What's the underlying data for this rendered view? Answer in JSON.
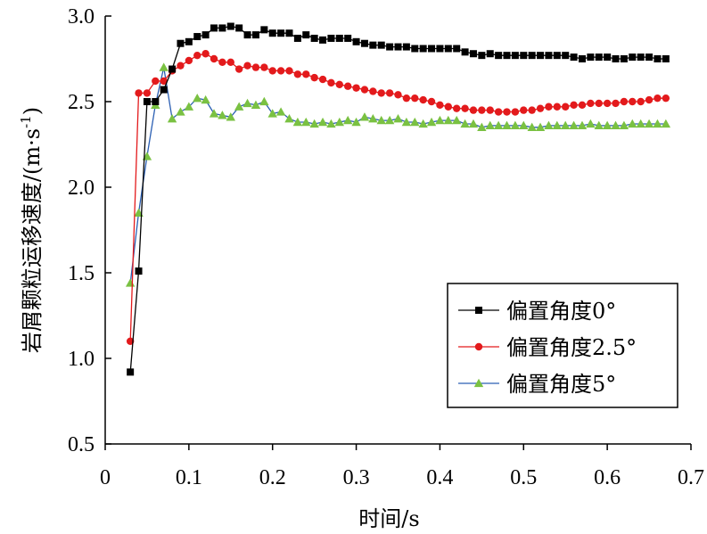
{
  "chart_data": {
    "type": "line",
    "xlabel": "时间/s",
    "ylabel": "岩屑颗粒运移速度/(m·s",
    "ylabel_sup": "-1",
    "ylabel_close": ")",
    "xlim": [
      0,
      0.7
    ],
    "ylim": [
      0.5,
      3.0
    ],
    "xticks": [
      0,
      0.1,
      0.2,
      0.3,
      0.4,
      0.5,
      0.6,
      0.7
    ],
    "xtick_labels": [
      "0",
      "0.1",
      "0.2",
      "0.3",
      "0.4",
      "0.5",
      "0.6",
      "0.7"
    ],
    "yticks": [
      0.5,
      1.0,
      1.5,
      2.0,
      2.5,
      3.0
    ],
    "ytick_labels": [
      "0.5",
      "1.0",
      "1.5",
      "2.0",
      "2.5",
      "3.0"
    ],
    "grid": false,
    "legend_position": "bottom-right",
    "series": [
      {
        "name": "偏置角度0°",
        "color": "#000000",
        "line_color": "#000000",
        "marker": "square",
        "x": [
          0.03,
          0.04,
          0.05,
          0.06,
          0.07,
          0.08,
          0.09,
          0.1,
          0.11,
          0.12,
          0.13,
          0.14,
          0.15,
          0.16,
          0.17,
          0.18,
          0.19,
          0.2,
          0.21,
          0.22,
          0.23,
          0.24,
          0.25,
          0.26,
          0.27,
          0.28,
          0.29,
          0.3,
          0.31,
          0.32,
          0.33,
          0.34,
          0.35,
          0.36,
          0.37,
          0.38,
          0.39,
          0.4,
          0.41,
          0.42,
          0.43,
          0.44,
          0.45,
          0.46,
          0.47,
          0.48,
          0.49,
          0.5,
          0.51,
          0.52,
          0.53,
          0.54,
          0.55,
          0.56,
          0.57,
          0.58,
          0.59,
          0.6,
          0.61,
          0.62,
          0.63,
          0.64,
          0.65,
          0.66,
          0.67
        ],
        "y": [
          0.92,
          1.51,
          2.5,
          2.5,
          2.57,
          2.69,
          2.84,
          2.85,
          2.88,
          2.89,
          2.93,
          2.93,
          2.94,
          2.93,
          2.89,
          2.89,
          2.92,
          2.9,
          2.9,
          2.9,
          2.87,
          2.89,
          2.87,
          2.86,
          2.87,
          2.87,
          2.87,
          2.85,
          2.84,
          2.83,
          2.83,
          2.82,
          2.82,
          2.82,
          2.81,
          2.81,
          2.81,
          2.81,
          2.81,
          2.81,
          2.79,
          2.78,
          2.77,
          2.78,
          2.77,
          2.77,
          2.77,
          2.77,
          2.77,
          2.77,
          2.77,
          2.77,
          2.77,
          2.76,
          2.75,
          2.76,
          2.76,
          2.76,
          2.75,
          2.75,
          2.76,
          2.76,
          2.76,
          2.75,
          2.75
        ]
      },
      {
        "name": "偏置角度2.5°",
        "color": "#e31a1c",
        "line_color": "#e31a1c",
        "marker": "circle",
        "x": [
          0.03,
          0.04,
          0.05,
          0.06,
          0.07,
          0.08,
          0.09,
          0.1,
          0.11,
          0.12,
          0.13,
          0.14,
          0.15,
          0.16,
          0.17,
          0.18,
          0.19,
          0.2,
          0.21,
          0.22,
          0.23,
          0.24,
          0.25,
          0.26,
          0.27,
          0.28,
          0.29,
          0.3,
          0.31,
          0.32,
          0.33,
          0.34,
          0.35,
          0.36,
          0.37,
          0.38,
          0.39,
          0.4,
          0.41,
          0.42,
          0.43,
          0.44,
          0.45,
          0.46,
          0.47,
          0.48,
          0.49,
          0.5,
          0.51,
          0.52,
          0.53,
          0.54,
          0.55,
          0.56,
          0.57,
          0.58,
          0.59,
          0.6,
          0.61,
          0.62,
          0.63,
          0.64,
          0.65,
          0.66,
          0.67
        ],
        "y": [
          1.1,
          2.55,
          2.55,
          2.62,
          2.62,
          2.68,
          2.71,
          2.74,
          2.77,
          2.78,
          2.75,
          2.73,
          2.73,
          2.69,
          2.71,
          2.7,
          2.7,
          2.68,
          2.68,
          2.68,
          2.66,
          2.66,
          2.64,
          2.63,
          2.61,
          2.6,
          2.59,
          2.58,
          2.57,
          2.56,
          2.55,
          2.55,
          2.54,
          2.52,
          2.52,
          2.51,
          2.5,
          2.48,
          2.47,
          2.46,
          2.46,
          2.45,
          2.45,
          2.45,
          2.44,
          2.44,
          2.44,
          2.45,
          2.45,
          2.46,
          2.47,
          2.47,
          2.47,
          2.48,
          2.48,
          2.49,
          2.49,
          2.49,
          2.49,
          2.5,
          2.5,
          2.5,
          2.51,
          2.52,
          2.52
        ]
      },
      {
        "name": "偏置角度5°",
        "color": "#7ac142",
        "line_color": "#2b5fb3",
        "marker": "triangle",
        "x": [
          0.03,
          0.04,
          0.05,
          0.06,
          0.07,
          0.08,
          0.09,
          0.1,
          0.11,
          0.12,
          0.13,
          0.14,
          0.15,
          0.16,
          0.17,
          0.18,
          0.19,
          0.2,
          0.21,
          0.22,
          0.23,
          0.24,
          0.25,
          0.26,
          0.27,
          0.28,
          0.29,
          0.3,
          0.31,
          0.32,
          0.33,
          0.34,
          0.35,
          0.36,
          0.37,
          0.38,
          0.39,
          0.4,
          0.41,
          0.42,
          0.43,
          0.44,
          0.45,
          0.46,
          0.47,
          0.48,
          0.49,
          0.5,
          0.51,
          0.52,
          0.53,
          0.54,
          0.55,
          0.56,
          0.57,
          0.58,
          0.59,
          0.6,
          0.61,
          0.62,
          0.63,
          0.64,
          0.65,
          0.66,
          0.67
        ],
        "y": [
          1.44,
          1.85,
          2.18,
          2.48,
          2.7,
          2.4,
          2.44,
          2.47,
          2.52,
          2.51,
          2.43,
          2.42,
          2.41,
          2.47,
          2.49,
          2.48,
          2.5,
          2.43,
          2.44,
          2.4,
          2.38,
          2.38,
          2.37,
          2.38,
          2.37,
          2.38,
          2.39,
          2.38,
          2.41,
          2.4,
          2.39,
          2.39,
          2.4,
          2.38,
          2.38,
          2.37,
          2.38,
          2.39,
          2.39,
          2.39,
          2.37,
          2.37,
          2.35,
          2.36,
          2.36,
          2.36,
          2.36,
          2.36,
          2.35,
          2.35,
          2.36,
          2.36,
          2.36,
          2.36,
          2.36,
          2.37,
          2.36,
          2.36,
          2.36,
          2.36,
          2.37,
          2.37,
          2.37,
          2.37,
          2.37
        ]
      }
    ]
  }
}
